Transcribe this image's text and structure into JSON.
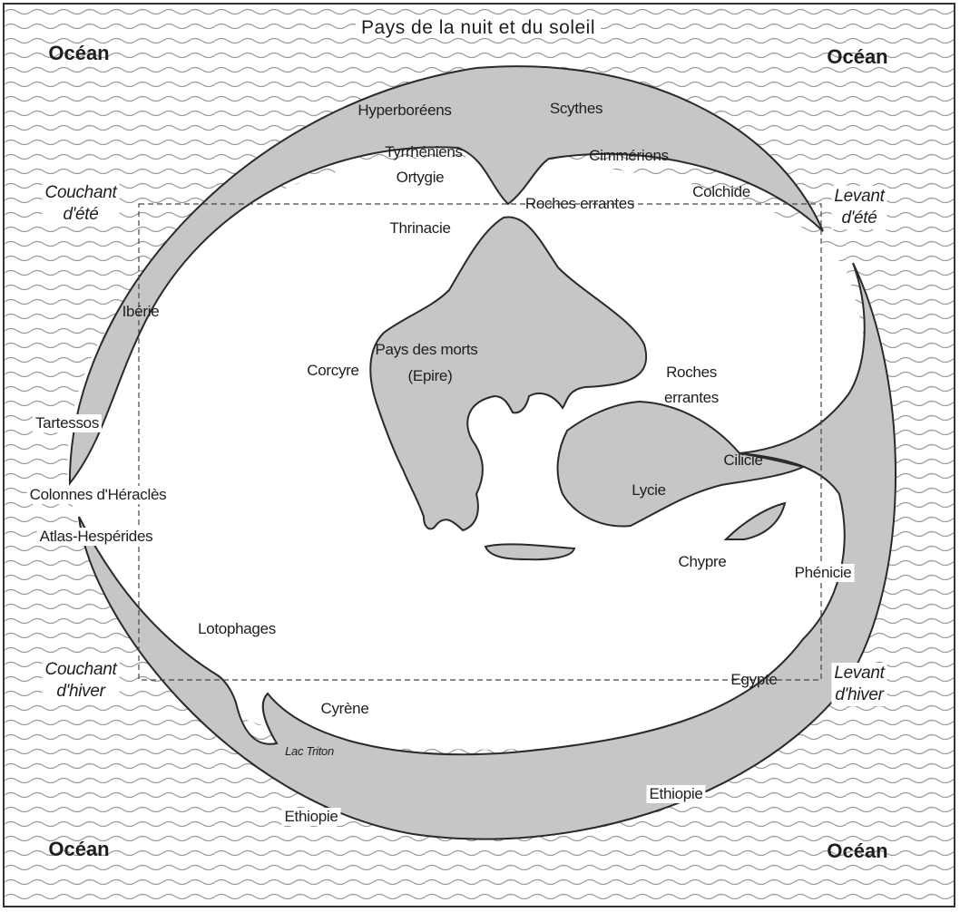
{
  "map": {
    "title": "Pays de la nuit et du soleil",
    "colors": {
      "land": "#c6c6c6",
      "ocean_wave": "#9a9a9a",
      "outline": "#2a2a2a",
      "background": "#ffffff"
    },
    "corners": {
      "top_left": "Océan",
      "top_right": "Océan",
      "bottom_left": "Océan",
      "bottom_right": "Océan"
    },
    "directions": {
      "couchant_ete": [
        "Couchant",
        "d'été"
      ],
      "levant_ete": [
        "Levant",
        "d'été"
      ],
      "couchant_hiver": [
        "Couchant",
        "d'hiver"
      ],
      "levant_hiver": [
        "Levant",
        "d'hiver"
      ]
    },
    "places": {
      "hyperboreens": "Hyperboréens",
      "scythes": "Scythes",
      "tyrrheniens": "Tyrrhéniens",
      "ortygie": "Ortygie",
      "cimmeriens": "Cimmériens",
      "colchide": "Colchide",
      "roches_errantes_north": "Roches errantes",
      "thrinacie": "Thrinacie",
      "iberie": "Ibérie",
      "pays_des_morts": "Pays des morts",
      "epire": "(Epire)",
      "corcyre": "Corcyre",
      "roches_errantes_east_1": "Roches",
      "roches_errantes_east_2": "errantes",
      "tartessos": "Tartessos",
      "colonnes": "Colonnes d'Héraclès",
      "atlas": "Atlas-Hespérides",
      "cilicie": "Cilicie",
      "lycie": "Lycie",
      "chypre": "Chypre",
      "phenicie": "Phénicie",
      "lotophages": "Lotophages",
      "egypte": "Egypte",
      "cyrene": "Cyrène",
      "lac_triton": "Lac Triton",
      "ethiopie_west": "Ethiopie",
      "ethiopie_east": "Ethiopie"
    }
  }
}
